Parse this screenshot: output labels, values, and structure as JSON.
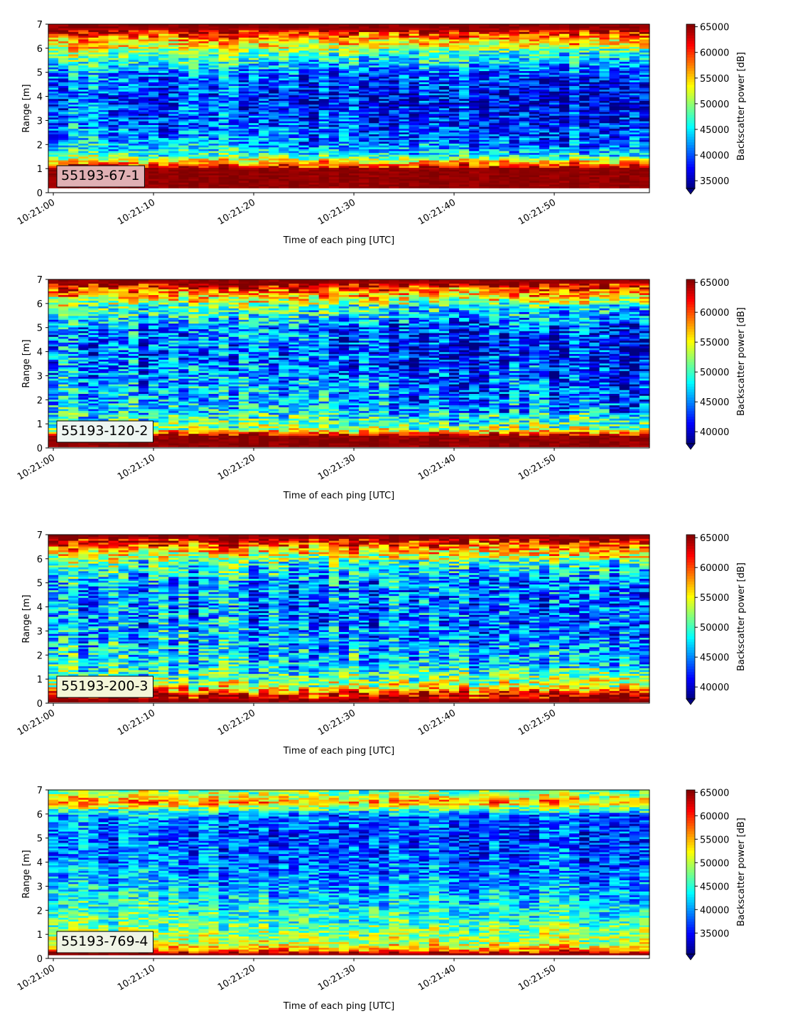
{
  "chart_data": [
    {
      "type": "heatmap",
      "label_box": "55193-67-1",
      "label_box_color": "#e0b0b4",
      "xlabel": "Time of each ping [UTC]",
      "ylabel": "Range [m]",
      "colorbar_label": "Backscatter power [dB]",
      "colorbar_extend": "min",
      "colormap": "jet",
      "clim": [
        33500,
        65500
      ],
      "colorbar_ticks": [
        "35000",
        "40000",
        "45000",
        "50000",
        "55000",
        "60000",
        "65000"
      ],
      "xlim": [
        "10:20:59.5",
        "10:21:59.5"
      ],
      "xticks": [
        "10:21:00",
        "10:21:10",
        "10:21:20",
        "10:21:30",
        "10:21:40",
        "10:21:50"
      ],
      "ylim": [
        0,
        7
      ],
      "yticks": [
        "0",
        "1",
        "2",
        "3",
        "4",
        "5",
        "6",
        "7"
      ],
      "profile": {
        "range_m": [
          0.25,
          1.0,
          1.5,
          2.0,
          3.0,
          4.0,
          5.0,
          5.8,
          6.4,
          6.85
        ],
        "level": [
          65000,
          65000,
          49000,
          44000,
          41000,
          40000,
          43000,
          50000,
          57000,
          65000
        ],
        "data_top_m": 7.0,
        "data_bottom_m": 0.2
      }
    },
    {
      "type": "heatmap",
      "label_box": "55193-120-2",
      "label_box_color": "#eef6f2",
      "xlabel": "Time of each ping [UTC]",
      "ylabel": "Range [m]",
      "colorbar_label": "Backscatter power [dB]",
      "colorbar_extend": "min",
      "colormap": "jet",
      "clim": [
        38000,
        65500
      ],
      "colorbar_ticks": [
        "40000",
        "45000",
        "50000",
        "55000",
        "60000",
        "65000"
      ],
      "xlim": [
        "10:20:59.5",
        "10:21:59.5"
      ],
      "xticks": [
        "10:21:00",
        "10:21:10",
        "10:21:20",
        "10:21:30",
        "10:21:40",
        "10:21:50"
      ],
      "ylim": [
        0,
        7
      ],
      "yticks": [
        "0",
        "1",
        "2",
        "3",
        "4",
        "5",
        "6",
        "7"
      ],
      "profile": {
        "range_m": [
          0.1,
          0.5,
          0.8,
          1.2,
          2.0,
          3.0,
          4.0,
          5.0,
          5.9,
          6.4,
          6.9
        ],
        "level": [
          65000,
          65000,
          52000,
          49000,
          47000,
          45500,
          44500,
          45500,
          51000,
          57000,
          65000
        ],
        "data_top_m": 7.0,
        "data_bottom_m": 0.05
      }
    },
    {
      "type": "heatmap",
      "label_box": "55193-200-3",
      "label_box_color": "#f4f6d8",
      "xlabel": "Time of each ping [UTC]",
      "ylabel": "Range [m]",
      "colorbar_label": "Backscatter power [dB]",
      "colorbar_extend": "min",
      "colormap": "jet",
      "clim": [
        38000,
        65500
      ],
      "colorbar_ticks": [
        "40000",
        "45000",
        "50000",
        "55000",
        "60000",
        "65000"
      ],
      "xlim": [
        "10:20:59.5",
        "10:21:59.5"
      ],
      "xticks": [
        "10:21:00",
        "10:21:10",
        "10:21:20",
        "10:21:30",
        "10:21:40",
        "10:21:50"
      ],
      "ylim": [
        0,
        7
      ],
      "yticks": [
        "0",
        "1",
        "2",
        "3",
        "4",
        "5",
        "6",
        "7"
      ],
      "profile": {
        "range_m": [
          0.1,
          0.35,
          0.7,
          1.2,
          2.0,
          3.0,
          4.0,
          5.0,
          5.9,
          6.4,
          6.9
        ],
        "level": [
          65000,
          63000,
          54000,
          50000,
          48000,
          46500,
          46000,
          46500,
          51000,
          57000,
          65000
        ],
        "data_top_m": 7.0,
        "data_bottom_m": 0.05
      }
    },
    {
      "type": "heatmap",
      "label_box": "55193-769-4",
      "label_box_color": "#f0f4e6",
      "xlabel": "Time of each ping [UTC]",
      "ylabel": "Range [m]",
      "colorbar_label": "Backscatter power [dB]",
      "colorbar_extend": "min",
      "colormap": "jet",
      "clim": [
        30500,
        65500
      ],
      "colorbar_ticks": [
        "35000",
        "40000",
        "45000",
        "50000",
        "55000",
        "60000",
        "65000"
      ],
      "xlim": [
        "10:20:59.5",
        "10:21:59.5"
      ],
      "xticks": [
        "10:21:00",
        "10:21:10",
        "10:21:20",
        "10:21:30",
        "10:21:40",
        "10:21:50"
      ],
      "ylim": [
        0,
        7
      ],
      "yticks": [
        "0",
        "1",
        "2",
        "3",
        "4",
        "5",
        "6",
        "7"
      ],
      "profile": {
        "range_m": [
          0.2,
          0.35,
          0.6,
          1.0,
          2.0,
          3.0,
          4.0,
          5.0,
          6.0,
          6.5,
          6.9
        ],
        "level": [
          65000,
          58000,
          51000,
          48500,
          45000,
          41500,
          39000,
          38000,
          40000,
          56000,
          48000
        ],
        "data_top_m": 7.0,
        "data_bottom_m": 0.15
      }
    }
  ]
}
